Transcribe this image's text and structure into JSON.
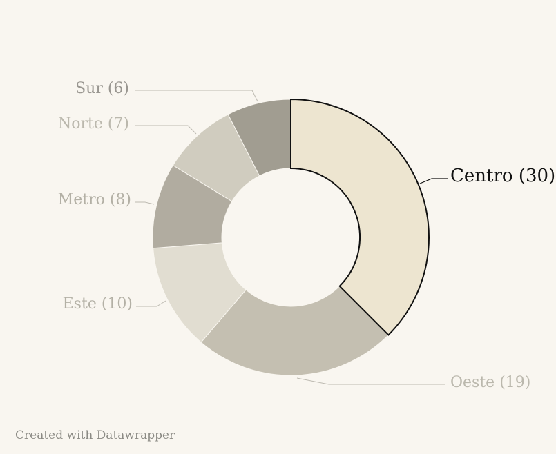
{
  "chart_data": {
    "type": "pie",
    "donut": true,
    "title": "",
    "slices": [
      {
        "label": "Centro (30)",
        "name": "Centro",
        "value": 30,
        "color": "#ede5d0",
        "highlight": true
      },
      {
        "label": "Oeste (19)",
        "name": "Oeste",
        "value": 19,
        "color": "#c4bfb1"
      },
      {
        "label": "Este (10)",
        "name": "Este",
        "value": 10,
        "color": "#e1ddd1"
      },
      {
        "label": "Metro (8)",
        "name": "Metro",
        "value": 8,
        "color": "#b1aca0"
      },
      {
        "label": "Norte (7)",
        "name": "Norte",
        "value": 7,
        "color": "#d0ccbf"
      },
      {
        "label": "Sur (6)",
        "name": "Sur",
        "value": 6,
        "color": "#a19d91"
      }
    ],
    "label_colors": {
      "highlight": "#111111",
      "Oeste": "#bbb8ad",
      "Este": "#b3b0a5",
      "Metro": "#b3b0a5",
      "Norte": "#bbb8ad",
      "Sur": "#999690"
    }
  },
  "credit": "Created with Datawrapper"
}
